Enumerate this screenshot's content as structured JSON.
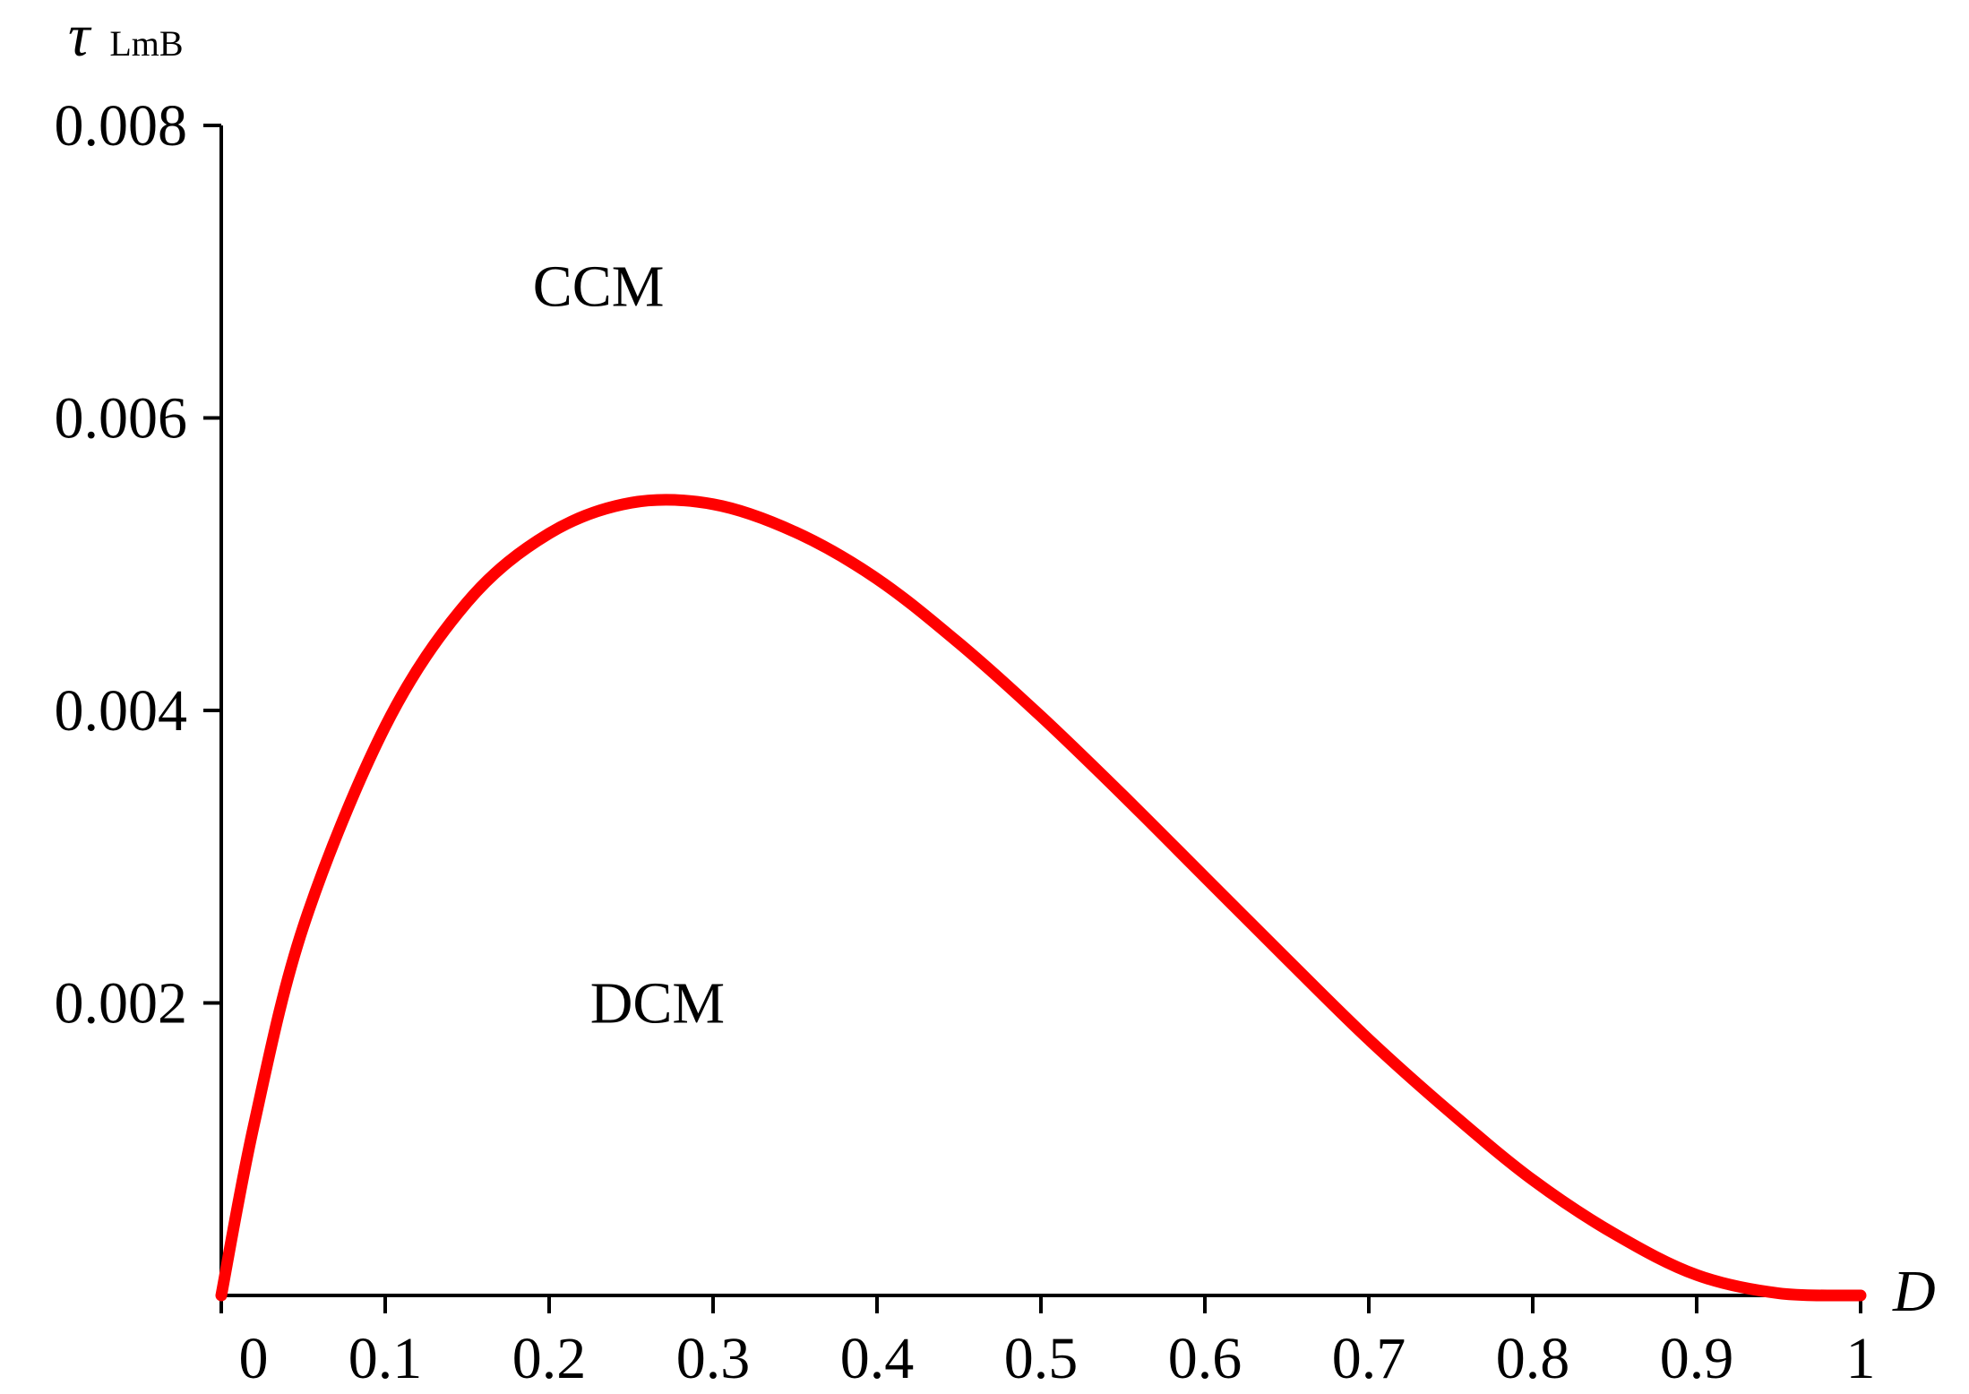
{
  "chart_data": {
    "type": "line",
    "title": "",
    "ylabel_symbol": "τ",
    "ylabel_subscript": "LmB",
    "xlabel": "D",
    "xlim": [
      0,
      1
    ],
    "ylim": [
      0,
      0.008
    ],
    "x_ticks": [
      0,
      0.1,
      0.2,
      0.3,
      0.4,
      0.5,
      0.6,
      0.7,
      0.8,
      0.9,
      1
    ],
    "x_tick_labels": [
      "0",
      "0.1",
      "0.2",
      "0.3",
      "0.4",
      "0.5",
      "0.6",
      "0.7",
      "0.8",
      "0.9",
      "1"
    ],
    "y_ticks": [
      0.002,
      0.004,
      0.006,
      0.008
    ],
    "y_tick_labels": [
      "0.002",
      "0.004",
      "0.006",
      "0.008"
    ],
    "grid": false,
    "legend": "none",
    "annotations": [
      {
        "text": "CCM",
        "x": 0.19,
        "y": 0.0069
      },
      {
        "text": "DCM",
        "x": 0.225,
        "y": 0.002
      }
    ],
    "series": [
      {
        "color": "#ff0000",
        "x": [
          0,
          0.02,
          0.05,
          0.1,
          0.15,
          0.2,
          0.25,
          0.3,
          0.35,
          0.4,
          0.45,
          0.5,
          0.55,
          0.6,
          0.65,
          0.7,
          0.75,
          0.8,
          0.85,
          0.9,
          0.95,
          1.0
        ],
        "y": [
          0,
          0.00117,
          0.00252,
          0.00389,
          0.00474,
          0.00521,
          0.00542,
          0.00541,
          0.00522,
          0.0049,
          0.00446,
          0.00396,
          0.00342,
          0.00286,
          0.0023,
          0.00175,
          0.00125,
          0.00079,
          0.00042,
          0.00014,
          1.5e-05,
          0
        ]
      }
    ]
  }
}
